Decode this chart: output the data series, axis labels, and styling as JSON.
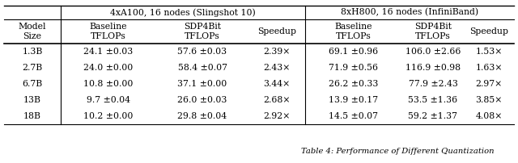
{
  "header_group1": "4xA100, 16 nodes (Slingshot 10)",
  "header_group2": "8xH800, 16 nodes (InfiniBand)",
  "col_headers": [
    "Model\nSize",
    "Baseline\nTFLOPs",
    "SDP4Bit\nTFLOPs",
    "Speedup",
    "Baseline\nTFLOPs",
    "SDP4Bit\nTFLOPs",
    "Speedup"
  ],
  "rows": [
    [
      "1.3B",
      "24.1 ±0.03",
      "57.6 ±0.03",
      "2.39×",
      "69.1 ±0.96",
      "106.0 ±2.66",
      "1.53×"
    ],
    [
      "2.7B",
      "24.0 ±0.00",
      "58.4 ±0.07",
      "2.43×",
      "71.9 ±0.56",
      "116.9 ±0.98",
      "1.63×"
    ],
    [
      "6.7B",
      "10.8 ±0.00",
      "37.1 ±0.00",
      "3.44×",
      "26.2 ±0.33",
      "77.9 ±2.43",
      "2.97×"
    ],
    [
      "13B",
      "9.7 ±0.04",
      "26.0 ±0.03",
      "2.68×",
      "13.9 ±0.17",
      "53.5 ±1.36",
      "3.85×"
    ],
    [
      "18B",
      "10.2 ±0.00",
      "29.8 ±0.04",
      "2.92×",
      "14.5 ±0.07",
      "59.2 ±1.37",
      "4.08×"
    ]
  ],
  "background_color": "#ffffff",
  "line_color": "#000000",
  "font_size": 7.8,
  "caption_font_size": 7.2,
  "caption_text": "Table 4: Performance of Different Quantization"
}
